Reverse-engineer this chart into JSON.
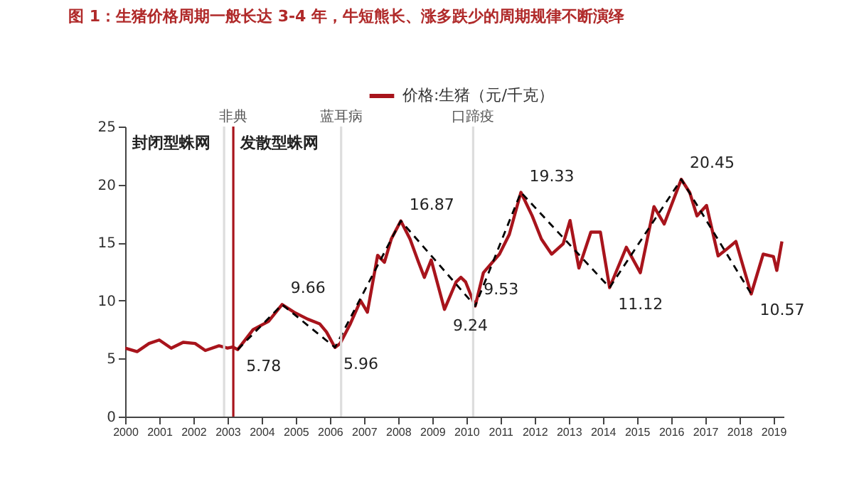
{
  "chart_data": {
    "type": "line",
    "title": "图 1：生猪价格周期一般长达 3-4 年，牛短熊长、涨多跌少的周期规律不断演绎",
    "series": [
      {
        "name": "价格:生猪（元/千克）",
        "color": "#a8141c",
        "line_style": "solid",
        "x": [
          2000,
          2000.35,
          2000.7,
          2001.0,
          2001.35,
          2001.7,
          2002.05,
          2002.35,
          2002.75,
          2003.0,
          2003.15,
          2003.3,
          2003.75,
          2004.2,
          2004.6,
          2004.95,
          2005.35,
          2005.7,
          2005.9,
          2006.15,
          2006.3,
          2006.6,
          2006.9,
          2007.1,
          2007.4,
          2007.6,
          2007.8,
          2008.08,
          2008.35,
          2008.6,
          2008.77,
          2008.97,
          2009.36,
          2009.7,
          2009.84,
          2009.98,
          2010.26,
          2010.5,
          2010.97,
          2011.26,
          2011.6,
          2011.93,
          2012.2,
          2012.5,
          2012.84,
          2013.04,
          2013.3,
          2013.65,
          2013.93,
          2014.2,
          2014.69,
          2015.1,
          2015.5,
          2015.8,
          2016.3,
          2016.55,
          2016.76,
          2017.04,
          2017.38,
          2017.66,
          2017.9,
          2018.35,
          2018.7,
          2019.0,
          2019.1,
          2019.25
        ],
        "values": [
          5.9,
          5.6,
          6.3,
          6.6,
          5.9,
          6.4,
          6.3,
          5.7,
          6.1,
          5.9,
          6.0,
          5.78,
          7.5,
          8.2,
          9.66,
          9.0,
          8.4,
          8.0,
          7.3,
          5.96,
          6.3,
          8.0,
          10.0,
          9.0,
          13.9,
          13.3,
          15.3,
          16.87,
          15.3,
          13.3,
          12.0,
          13.5,
          9.24,
          11.6,
          12.0,
          11.6,
          9.53,
          12.4,
          14.0,
          15.7,
          19.33,
          17.3,
          15.3,
          14.0,
          14.9,
          16.9,
          12.8,
          15.9,
          15.9,
          11.12,
          14.6,
          12.4,
          18.1,
          16.6,
          20.45,
          19.3,
          17.3,
          18.2,
          13.85,
          14.5,
          15.1,
          10.57,
          14.0,
          13.8,
          12.6,
          15.1
        ]
      },
      {
        "color": "#000000",
        "line_style": "dashed",
        "x": [
          2003.3,
          2004.6,
          2006.15,
          2008.08,
          2010.26,
          2011.6,
          2014.2,
          2016.3,
          2018.35
        ],
        "values": [
          5.78,
          9.66,
          5.96,
          16.87,
          9.53,
          19.33,
          11.12,
          20.45,
          10.57
        ]
      }
    ],
    "xlim": [
      2000,
      2019.3
    ],
    "xticks": [
      2000,
      2001,
      2002,
      2003,
      2004,
      2005,
      2006,
      2007,
      2008,
      2009,
      2010,
      2011,
      2012,
      2013,
      2014,
      2015,
      2016,
      2017,
      2018,
      2019
    ],
    "ylim": [
      0,
      25
    ],
    "yticks": [
      0,
      5,
      10,
      15,
      20,
      25
    ],
    "grid": false,
    "legend": "top",
    "ref_lines": [
      {
        "axis": "x",
        "value": 2002.9,
        "label": null,
        "color": "#dddddd"
      },
      {
        "axis": "x",
        "value": 2003.17,
        "label": "非典",
        "color": "#a8141c"
      },
      {
        "axis": "x",
        "value": 2006.33,
        "label": "蓝耳病",
        "color": "#dddddd"
      },
      {
        "axis": "x",
        "value": 2010.2,
        "label": "口蹄疫",
        "color": "#dddddd"
      }
    ],
    "annotations": [
      "封闭型蛛网",
      "发散型蛛网",
      {
        "text": "5.78",
        "x": 2003.3,
        "y": 5.78
      },
      {
        "text": "9.66",
        "x": 2004.6,
        "y": 9.66
      },
      {
        "text": "5.96",
        "x": 2006.15,
        "y": 5.96
      },
      {
        "text": "16.87",
        "x": 2008.08,
        "y": 16.87
      },
      {
        "text": "9.24",
        "x": 2009.36,
        "y": 9.24
      },
      {
        "text": "9.53",
        "x": 2010.26,
        "y": 9.53
      },
      {
        "text": "19.33",
        "x": 2011.6,
        "y": 19.33
      },
      {
        "text": "11.12",
        "x": 2014.2,
        "y": 11.12
      },
      {
        "text": "20.45",
        "x": 2016.3,
        "y": 20.45
      },
      {
        "text": "10.57",
        "x": 2018.35,
        "y": 10.57
      }
    ]
  }
}
